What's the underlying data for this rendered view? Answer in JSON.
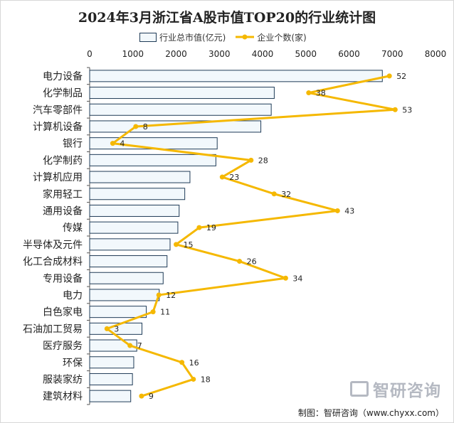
{
  "chart_data": {
    "type": "bar",
    "title": "2024年3月浙江省A股市值TOP20的行业统计图",
    "categories": [
      "电力设备",
      "化学制品",
      "汽车零部件",
      "计算机设备",
      "银行",
      "化学制药",
      "计算机应用",
      "家用轻工",
      "通用设备",
      "传媒",
      "半导体及元件",
      "化工合成材料",
      "专用设备",
      "电力",
      "白色家电",
      "石油加工贸易",
      "医疗服务",
      "环保",
      "服装家纺",
      "建筑材料"
    ],
    "series": [
      {
        "name": "行业总市值(亿元)",
        "type": "bar",
        "values": [
          6770,
          4270,
          4200,
          3960,
          2950,
          2920,
          2320,
          2200,
          2070,
          2040,
          1860,
          1790,
          1700,
          1610,
          1310,
          1210,
          1090,
          1020,
          990,
          950
        ]
      },
      {
        "name": "企业个数(家)",
        "type": "line",
        "values": [
          52,
          38,
          53,
          8,
          4,
          28,
          23,
          32,
          43,
          19,
          15,
          26,
          34,
          12,
          11,
          3,
          7,
          16,
          18,
          9
        ]
      }
    ],
    "x_axis": {
      "range": [
        0,
        8000
      ],
      "ticks": [
        0,
        1000,
        2000,
        3000,
        4000,
        5000,
        6000,
        7000,
        8000
      ]
    },
    "legend": "top-center",
    "colors": {
      "bar_fill": "#f2f8fc",
      "bar_stroke": "#1f3b57",
      "line": "#f5b800"
    }
  },
  "footer": "制图：智研咨询（www.chyxx.com）",
  "watermark": "智研咨询"
}
